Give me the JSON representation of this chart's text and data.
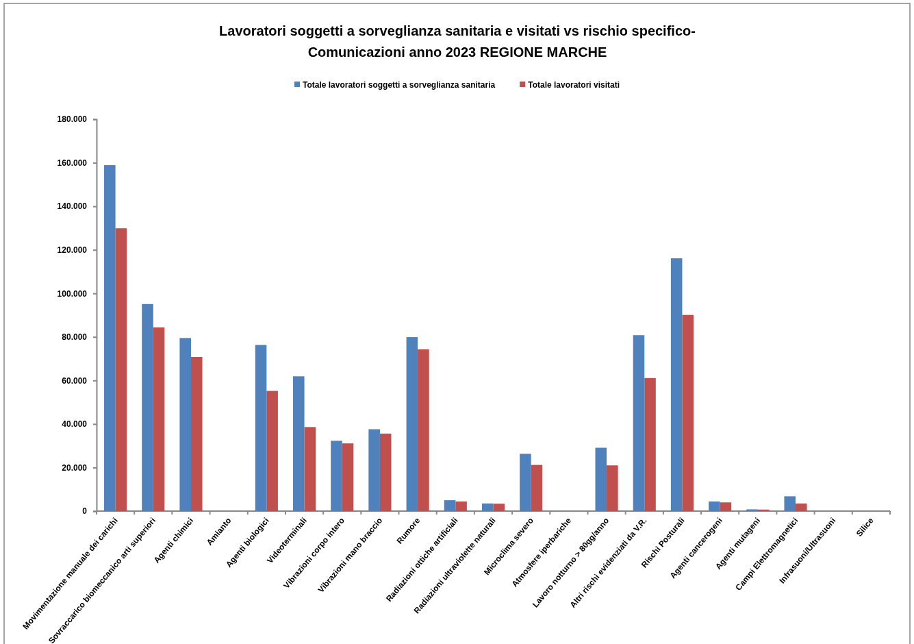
{
  "chart_data": {
    "type": "bar",
    "title": "Lavoratori soggetti a sorveglianza sanitaria e visitati vs rischio specifico-\nComunicazioni anno 2023 REGIONE MARCHE",
    "categories": [
      "Movimentazione manuale dei carichi",
      "Sovraccarico biomeccanico arti superiori",
      "Agenti chimici",
      "Amianto",
      "Agenti biologici",
      "Videoterminali",
      "Vibrazioni corpo intero",
      "Vibrazioni mano braccio",
      "Rumore",
      "Radiazioni ottiche artificiali",
      "Radiazioni ultraviolette naturali",
      "Microclima severo",
      "Atmosfere iperbariche",
      "Lavoro notturno > 80gg/anno",
      "Altri rischi evidenziati da V.R.",
      "Rischi Posturali",
      "Agenti cancerogeni",
      "Agenti mutageni",
      "Campi Elettromagnetici",
      "Infrasuoni/Ultrasuoni",
      "Silice"
    ],
    "series": [
      {
        "name": "Totale lavoratori soggetti a sorveglianza sanitaria",
        "color": "#4f81bd",
        "values": [
          158900,
          95100,
          79500,
          0,
          76300,
          61900,
          32300,
          37600,
          79900,
          5000,
          3500,
          26300,
          0,
          29100,
          80800,
          116100,
          4400,
          800,
          6800,
          0,
          0
        ]
      },
      {
        "name": "Totale lavoratori visitati",
        "color": "#c0504d",
        "values": [
          129900,
          84400,
          70800,
          0,
          55200,
          38600,
          31100,
          35600,
          74300,
          4400,
          3400,
          21200,
          0,
          21000,
          61100,
          90100,
          4000,
          700,
          3500,
          0,
          0
        ]
      }
    ],
    "ylim": [
      0,
      180000
    ],
    "yticks": [
      {
        "value": 0,
        "label": "0"
      },
      {
        "value": 20000,
        "label": "20.000"
      },
      {
        "value": 40000,
        "label": "40.000"
      },
      {
        "value": 60000,
        "label": "60.000"
      },
      {
        "value": 80000,
        "label": "80.000"
      },
      {
        "value": 100000,
        "label": "100.000"
      },
      {
        "value": 120000,
        "label": "120.000"
      },
      {
        "value": 140000,
        "label": "140.000"
      },
      {
        "value": 160000,
        "label": "160.000"
      },
      {
        "value": 180000,
        "label": "180.000"
      }
    ],
    "grid": false,
    "legend": "top"
  }
}
